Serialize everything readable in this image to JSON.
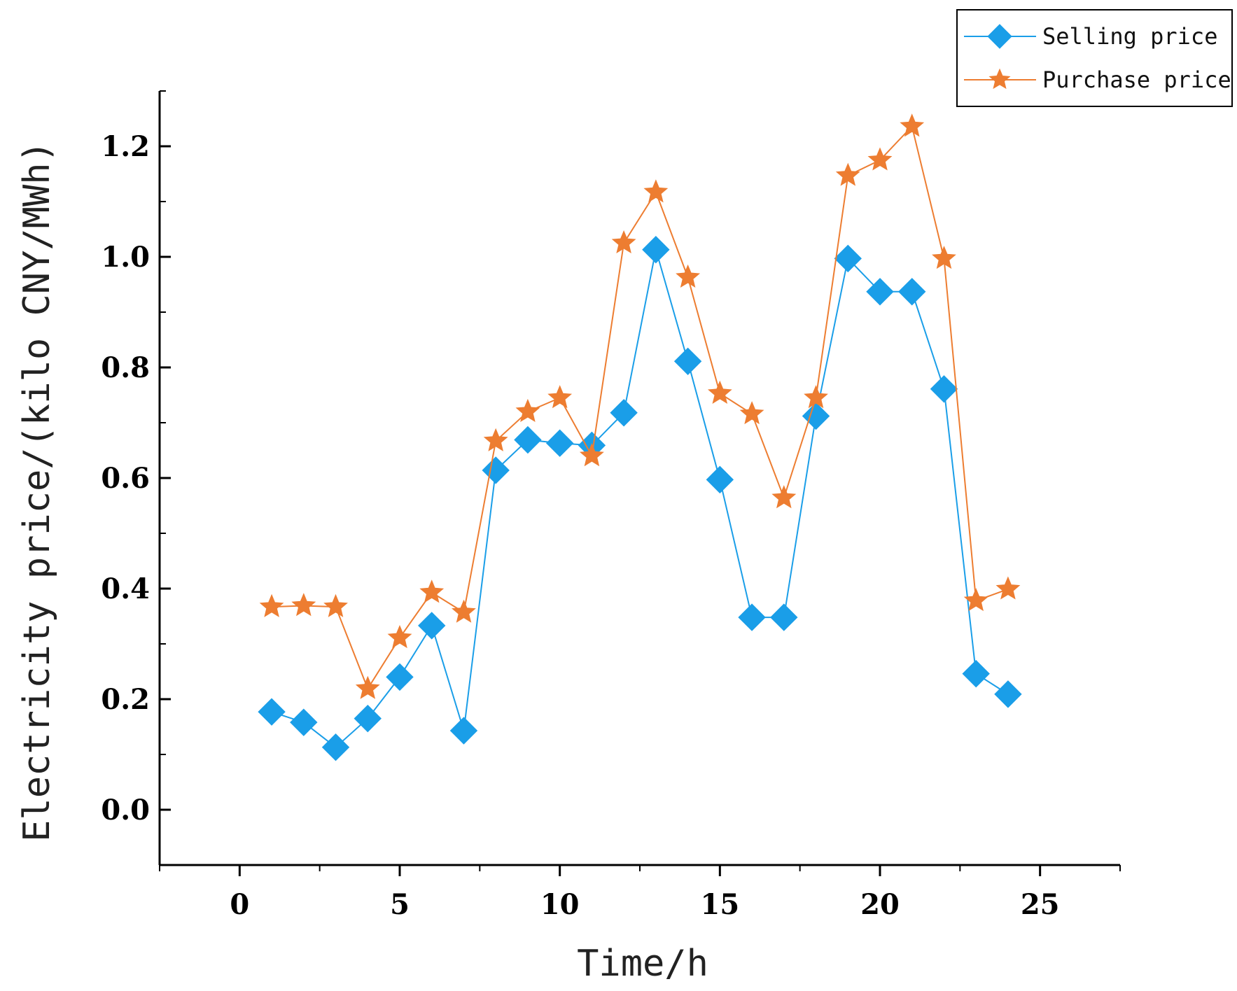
{
  "chart_data": {
    "type": "line",
    "title": "",
    "xlabel": "Time/h",
    "ylabel": "Electricity price/(kilo CNY/MWh)",
    "xlim": [
      -2.5,
      27.5
    ],
    "ylim": [
      -0.1,
      1.3
    ],
    "x_ticks": [
      0,
      5,
      10,
      15,
      20,
      25
    ],
    "y_ticks": [
      0.0,
      0.2,
      0.4,
      0.6,
      0.8,
      1.0,
      1.2
    ],
    "x_tick_labels": [
      "0",
      "5",
      "10",
      "15",
      "20",
      "25"
    ],
    "y_tick_labels": [
      "0.0",
      "0.2",
      "0.4",
      "0.6",
      "0.8",
      "1.0",
      "1.2"
    ],
    "legend_position": "top-right",
    "x": [
      1,
      2,
      3,
      4,
      5,
      6,
      7,
      8,
      9,
      10,
      11,
      12,
      13,
      14,
      15,
      16,
      17,
      18,
      19,
      20,
      21,
      22,
      23,
      24
    ],
    "series": [
      {
        "name": "Selling price",
        "color": "#1a9ee8",
        "marker": "diamond",
        "values": [
          0.177,
          0.158,
          0.113,
          0.165,
          0.24,
          0.333,
          0.143,
          0.614,
          0.669,
          0.663,
          0.659,
          0.718,
          1.013,
          0.811,
          0.597,
          0.348,
          0.348,
          0.712,
          0.997,
          0.937,
          0.937,
          0.761,
          0.246,
          0.209
        ]
      },
      {
        "name": "Purchase price",
        "color": "#ed7d31",
        "marker": "star",
        "values": [
          0.367,
          0.369,
          0.367,
          0.219,
          0.311,
          0.393,
          0.357,
          0.667,
          0.72,
          0.745,
          0.64,
          1.025,
          1.117,
          0.963,
          0.753,
          0.716,
          0.564,
          0.745,
          1.147,
          1.175,
          1.236,
          0.997,
          0.378,
          0.399
        ]
      }
    ]
  }
}
